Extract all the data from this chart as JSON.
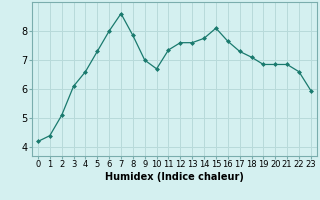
{
  "x": [
    0,
    1,
    2,
    3,
    4,
    5,
    6,
    7,
    8,
    9,
    10,
    11,
    12,
    13,
    14,
    15,
    16,
    17,
    18,
    19,
    20,
    21,
    22,
    23
  ],
  "y": [
    4.2,
    4.4,
    5.1,
    6.1,
    6.6,
    7.3,
    8.0,
    8.6,
    7.85,
    7.0,
    6.7,
    7.35,
    7.6,
    7.6,
    7.75,
    8.1,
    7.65,
    7.3,
    7.1,
    6.85,
    6.85,
    6.85,
    6.6,
    5.95
  ],
  "line_color": "#1a7a6e",
  "marker": "D",
  "marker_size": 2.0,
  "bg_color": "#d4f0f0",
  "grid_color": "#b8dada",
  "xlabel": "Humidex (Indice chaleur)",
  "xlabel_fontsize": 7,
  "ylabel_ticks": [
    4,
    5,
    6,
    7,
    8
  ],
  "xlim": [
    -0.5,
    23.5
  ],
  "ylim": [
    3.7,
    9.0
  ],
  "tick_fontsize": 6
}
